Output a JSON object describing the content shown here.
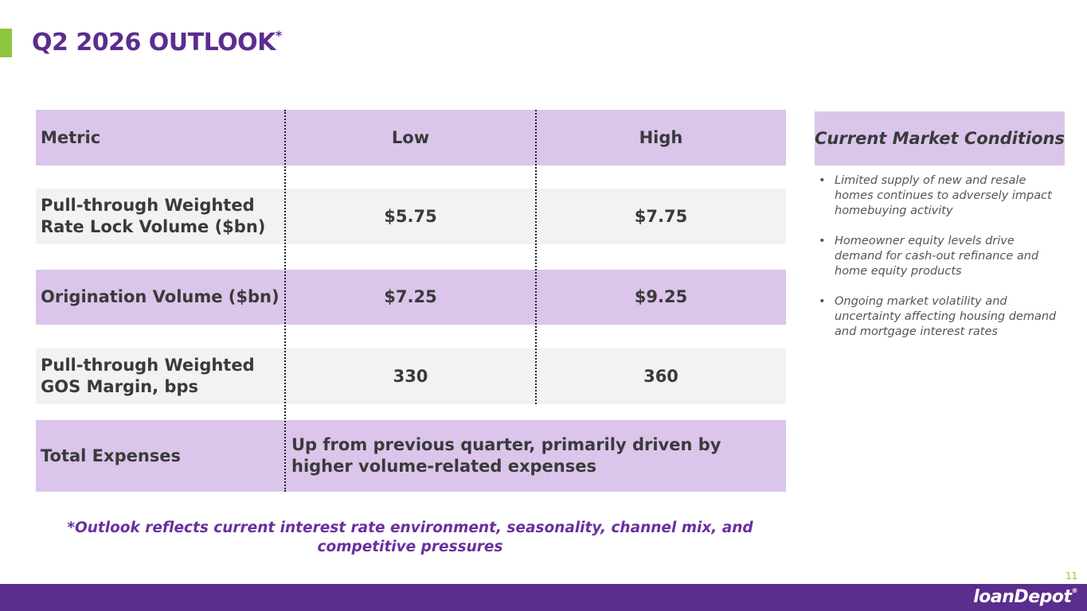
{
  "title": "Q2 2026 OUTLOOK",
  "title_mark": "*",
  "table": {
    "headers": {
      "metric": "Metric",
      "low": "Low",
      "high": "High"
    },
    "rows": [
      {
        "metric": "Pull-through Weighted Rate Lock Volume ($bn)",
        "low": "$5.75",
        "high": "$7.75"
      },
      {
        "metric": "Origination Volume ($bn)",
        "low": "$7.25",
        "high": "$9.25"
      },
      {
        "metric": "Pull-through Weighted GOS Margin, bps",
        "low": "330",
        "high": "360"
      }
    ],
    "expenses": {
      "metric": "Total Expenses",
      "value": "Up from previous quarter, primarily driven by higher volume-related expenses"
    }
  },
  "sidebar": {
    "heading": "Current Market Conditions",
    "bullets": [
      "Limited supply of new and resale homes continues to adversely impact homebuying activity",
      "Homeowner equity levels drive demand for cash-out refinance and home equity products",
      "Ongoing market volatility and uncertainty affecting housing demand and mortgage interest rates"
    ]
  },
  "footnote": "*Outlook reflects current interest rate environment, seasonality, channel mix, and competitive pressures",
  "page_number": "11",
  "logo": {
    "text": "loanDepot",
    "mark": "®"
  },
  "colors": {
    "brand_purple": "#5b2d8e",
    "accent_green": "#8dc63f",
    "row_purple": "#dbc5ea",
    "row_gray": "#f2f2f2"
  }
}
